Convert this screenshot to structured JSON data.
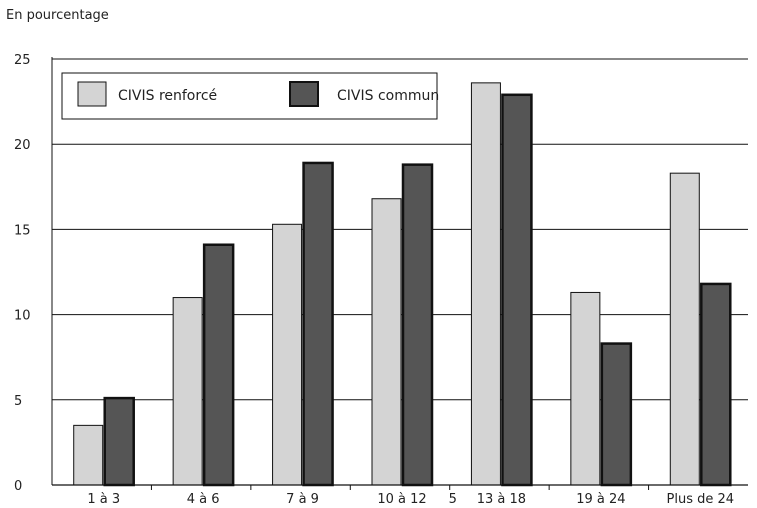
{
  "chart_data": {
    "type": "bar",
    "ylabel": "En pourcentage",
    "ylim": [
      0,
      25
    ],
    "yticks": [
      0,
      5,
      10,
      15,
      20,
      25
    ],
    "categories": [
      "1 à 3",
      "4 à 6",
      "7 à 9",
      "10 à 12",
      "13 à 18",
      "19 à 24",
      "Plus de 24"
    ],
    "extra_label": "5",
    "series": [
      {
        "name": "CIVIS renforcé",
        "values": [
          3.5,
          11.0,
          15.3,
          16.8,
          23.6,
          11.3,
          18.3
        ],
        "color": "#d4d4d4"
      },
      {
        "name": "CIVIS commun",
        "values": [
          5.1,
          14.1,
          18.9,
          18.8,
          22.9,
          8.3,
          11.8
        ],
        "color": "#555555"
      }
    ],
    "grid": true,
    "legend_position": "top-left"
  }
}
